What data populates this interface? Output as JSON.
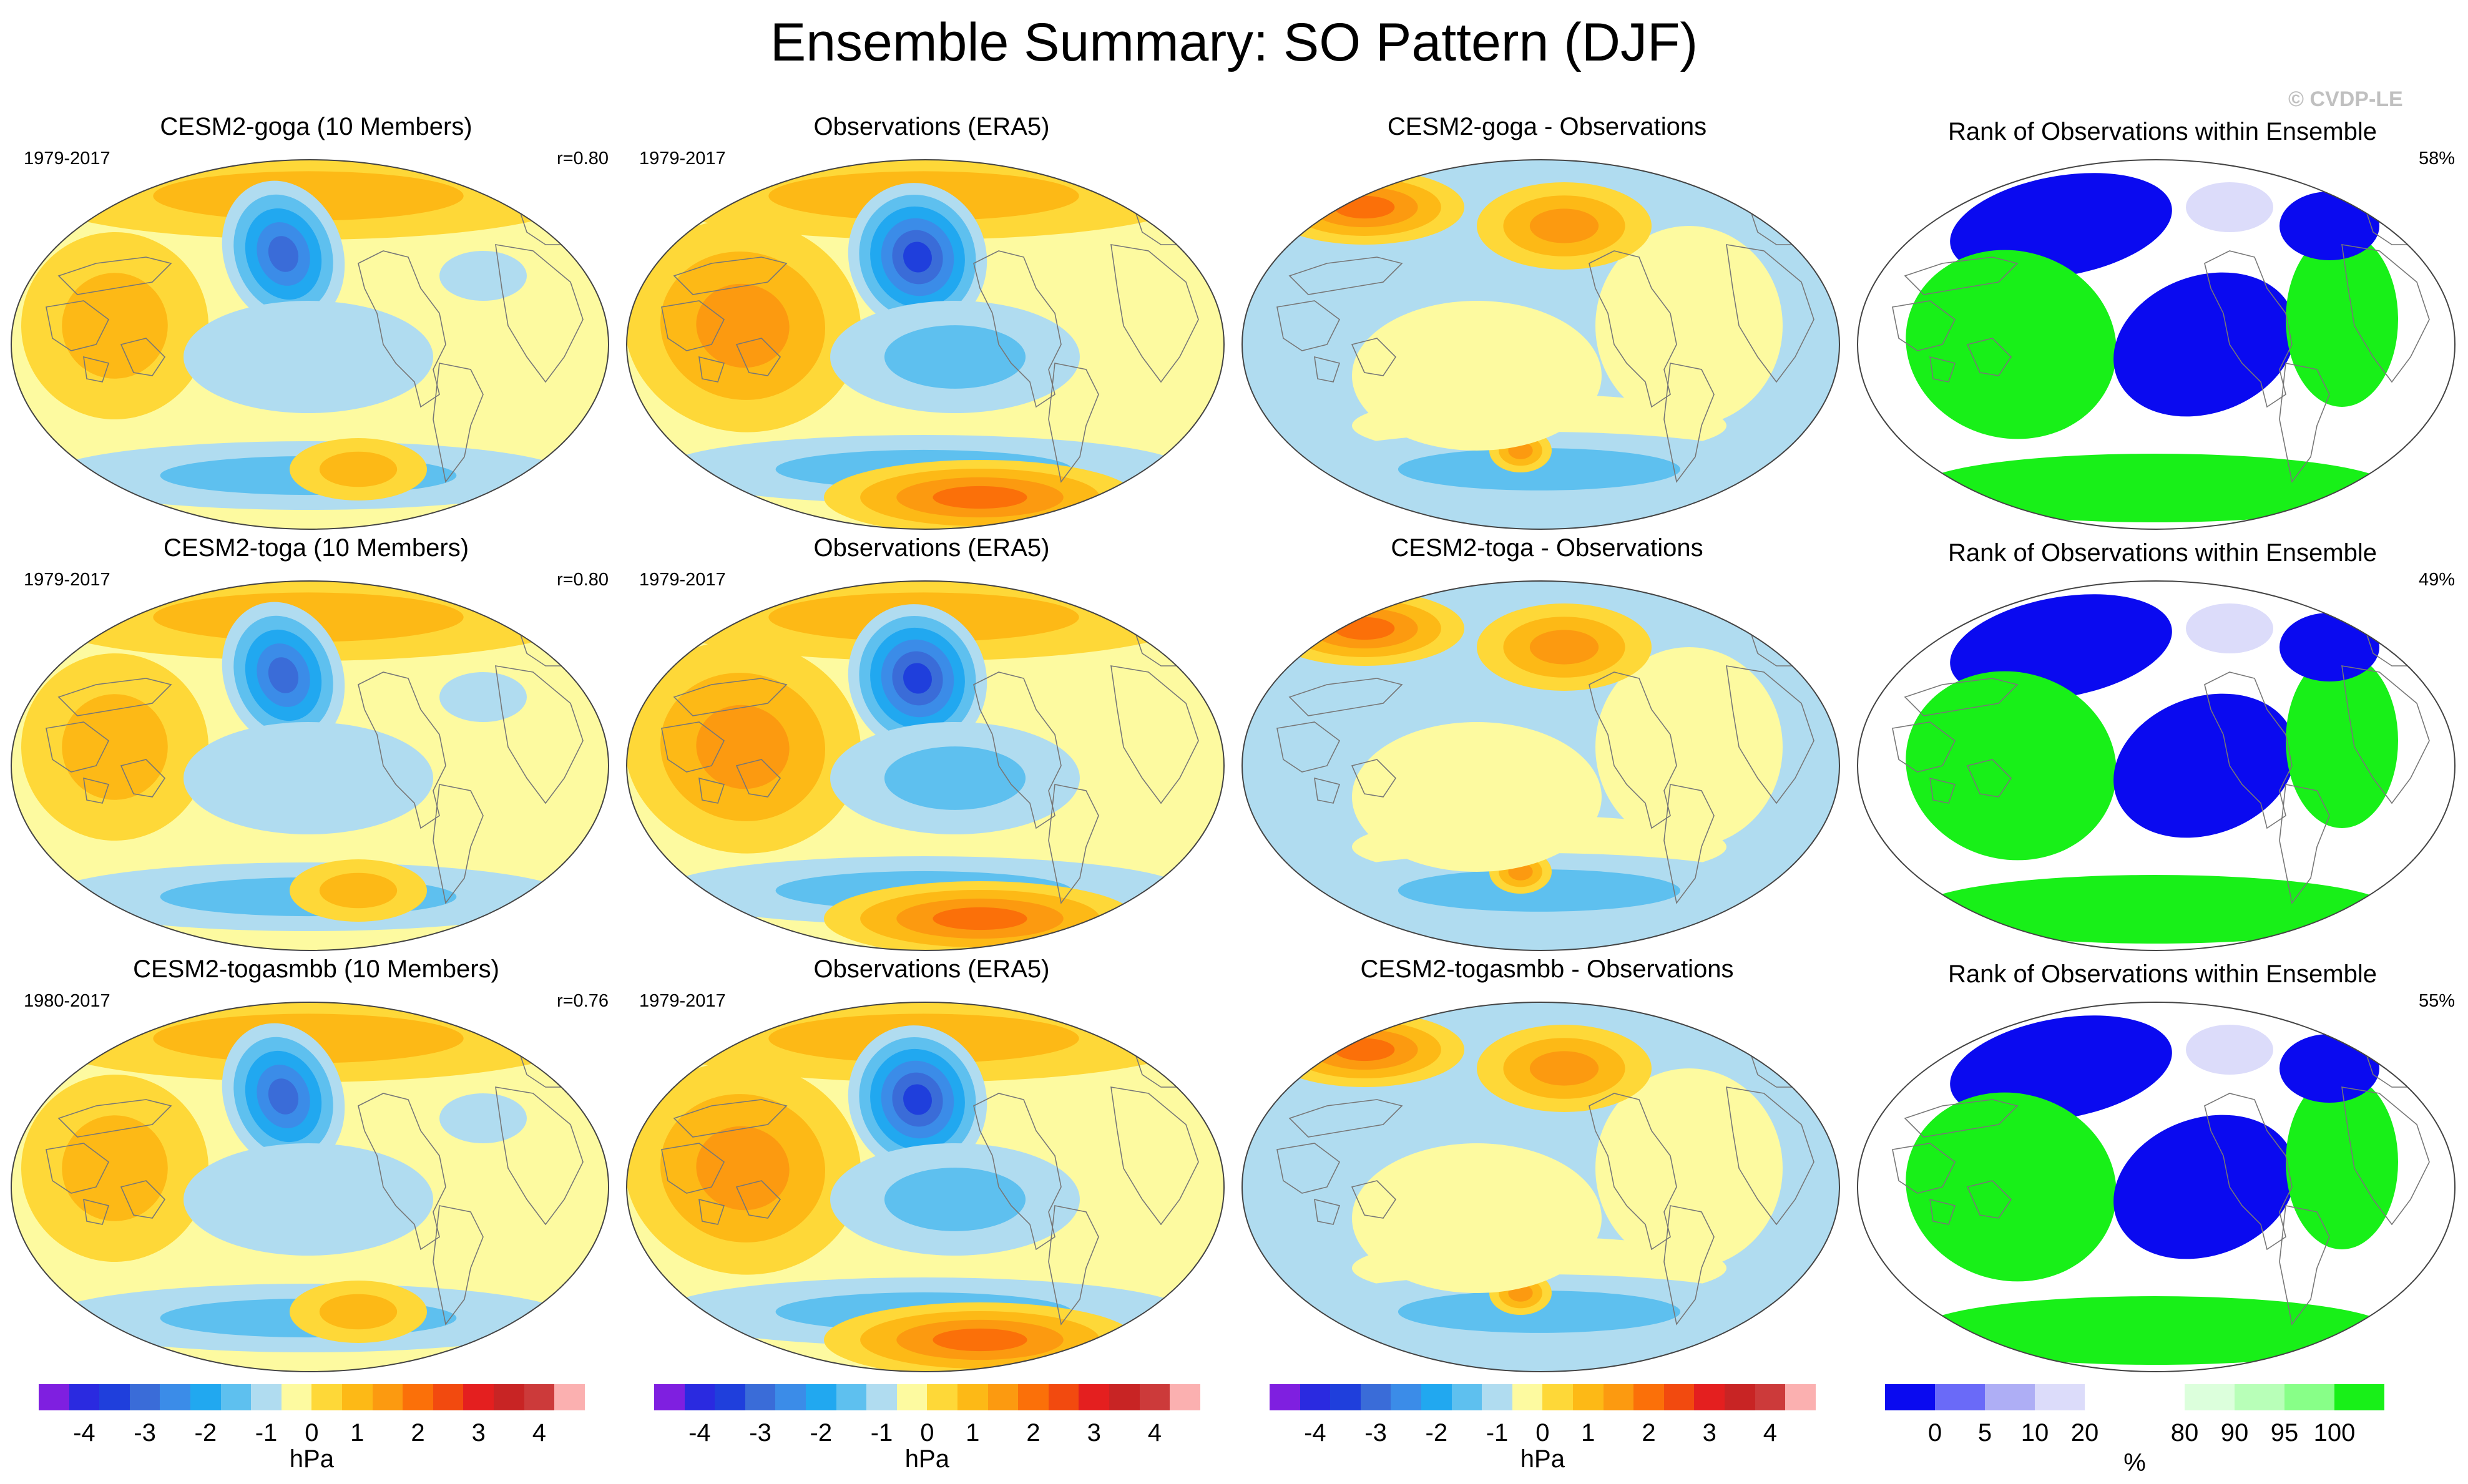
{
  "title": "Ensemble Summary: SO Pattern (DJF)",
  "copyright": "© CVDP-LE",
  "colors": {
    "diverging": [
      "#7f1fe0",
      "#2a2ae0",
      "#1f3fdc",
      "#3a6cd8",
      "#3b8ce8",
      "#21a8f0",
      "#5ec0ef",
      "#b0dcf0",
      "#fdfaa0",
      "#fed838",
      "#fdb916",
      "#fc9a10",
      "#fb7009",
      "#f24a0f",
      "#e41f1f",
      "#c82424",
      "#cc3a3a",
      "#fbb0b0"
    ],
    "rank": [
      "#0a0af0",
      "#6a6af8",
      "#aeaef5",
      "#dcdcfa",
      "#ffffff",
      "#ffffff",
      "#dcffdc",
      "#b8ffb8",
      "#88ff88",
      "#18f018"
    ],
    "coast": "#777777",
    "map_outline": "#444444"
  },
  "rows": [
    {
      "model": {
        "title": "CESM2-goga (10 Members)",
        "years": "1979-2017",
        "r": "r=0.80"
      },
      "obs": {
        "title": "Observations (ERA5)",
        "years": "1979-2017"
      },
      "diff": {
        "title": "CESM2-goga - Observations"
      },
      "rank": {
        "title": "Rank of Observations within Ensemble",
        "pct": "58%"
      }
    },
    {
      "model": {
        "title": "CESM2-toga (10 Members)",
        "years": "1979-2017",
        "r": "r=0.80"
      },
      "obs": {
        "title": "Observations (ERA5)",
        "years": "1979-2017"
      },
      "diff": {
        "title": "CESM2-toga - Observations"
      },
      "rank": {
        "title": "Rank of Observations within Ensemble",
        "pct": "49%"
      }
    },
    {
      "model": {
        "title": "CESM2-togasmbb (10 Members)",
        "years": "1980-2017",
        "r": "r=0.76"
      },
      "obs": {
        "title": "Observations (ERA5)",
        "years": "1979-2017"
      },
      "diff": {
        "title": "CESM2-togasmbb - Observations"
      },
      "rank": {
        "title": "Rank of Observations within Ensemble",
        "pct": "55%"
      }
    }
  ],
  "colorbars": {
    "hpa": {
      "ticks": [
        "-4",
        "-3",
        "-2",
        "-1",
        "0",
        "1",
        "2",
        "3",
        "4"
      ],
      "unit": "hPa"
    },
    "rank": {
      "ticks": [
        "0",
        "5",
        "10",
        "20",
        "80",
        "90",
        "95",
        "100"
      ],
      "unit": "%"
    }
  }
}
